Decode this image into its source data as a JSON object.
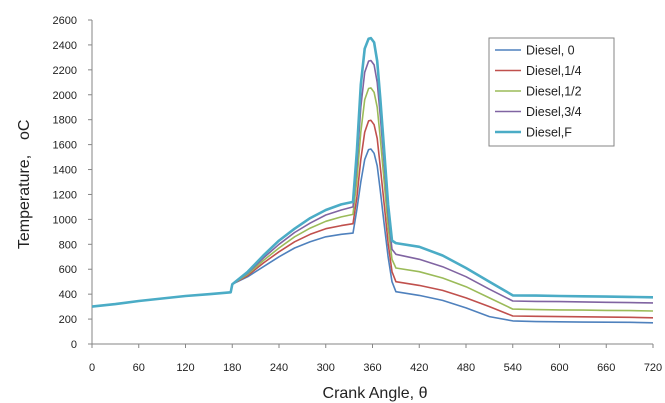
{
  "chart_data": {
    "type": "line",
    "xlabel": "Crank Angle, θ",
    "ylabel": "Temperature,",
    "ylabel_unit": "oC",
    "xlim": [
      0,
      720
    ],
    "ylim": [
      0,
      2600
    ],
    "xticks": [
      0,
      60,
      120,
      180,
      240,
      300,
      360,
      420,
      480,
      540,
      600,
      660,
      720
    ],
    "yticks": [
      0,
      200,
      400,
      600,
      800,
      1000,
      1200,
      1400,
      1600,
      1800,
      2000,
      2200,
      2400,
      2600
    ],
    "grid": false,
    "legend_position": "top-right",
    "series": [
      {
        "name": "Diesel, 0",
        "color": "#4f81bd",
        "x": [
          0,
          30,
          60,
          90,
          120,
          150,
          178,
          180,
          200,
          220,
          240,
          260,
          280,
          300,
          320,
          335,
          340,
          345,
          350,
          355,
          358,
          362,
          366,
          370,
          375,
          380,
          385,
          390,
          420,
          450,
          480,
          510,
          540,
          570,
          600,
          630,
          660,
          690,
          720
        ],
        "y": [
          300,
          320,
          345,
          365,
          385,
          400,
          415,
          480,
          540,
          620,
          700,
          770,
          820,
          860,
          880,
          890,
          1080,
          1300,
          1480,
          1560,
          1565,
          1530,
          1430,
          1230,
          960,
          700,
          500,
          420,
          390,
          350,
          290,
          220,
          185,
          180,
          178,
          176,
          175,
          174,
          170
        ]
      },
      {
        "name": "Diesel,1/4",
        "color": "#c0504d",
        "x": [
          0,
          30,
          60,
          90,
          120,
          150,
          178,
          180,
          200,
          220,
          240,
          260,
          280,
          300,
          320,
          335,
          340,
          345,
          350,
          355,
          358,
          362,
          366,
          370,
          375,
          380,
          385,
          390,
          420,
          450,
          480,
          510,
          540,
          570,
          600,
          630,
          660,
          690,
          720
        ],
        "y": [
          300,
          320,
          345,
          365,
          385,
          400,
          415,
          480,
          550,
          650,
          740,
          820,
          880,
          925,
          950,
          965,
          1180,
          1480,
          1700,
          1790,
          1795,
          1760,
          1650,
          1420,
          1120,
          810,
          580,
          500,
          470,
          430,
          370,
          300,
          225,
          222,
          220,
          218,
          216,
          214,
          210
        ]
      },
      {
        "name": "Diesel,1/2",
        "color": "#9bbb59",
        "x": [
          0,
          30,
          60,
          90,
          120,
          150,
          178,
          180,
          200,
          220,
          240,
          260,
          280,
          300,
          320,
          335,
          340,
          345,
          350,
          355,
          358,
          362,
          366,
          370,
          375,
          380,
          385,
          390,
          420,
          450,
          480,
          510,
          540,
          570,
          600,
          630,
          660,
          690,
          720
        ],
        "y": [
          300,
          320,
          345,
          365,
          385,
          400,
          415,
          480,
          560,
          670,
          770,
          860,
          930,
          985,
          1020,
          1040,
          1320,
          1700,
          1960,
          2050,
          2055,
          2020,
          1900,
          1650,
          1300,
          940,
          680,
          610,
          580,
          530,
          460,
          370,
          280,
          276,
          274,
          272,
          270,
          268,
          265
        ]
      },
      {
        "name": "Diesel,3/4",
        "color": "#8064a2",
        "x": [
          0,
          30,
          60,
          90,
          120,
          150,
          178,
          180,
          200,
          220,
          240,
          260,
          280,
          300,
          320,
          335,
          340,
          345,
          350,
          355,
          358,
          362,
          366,
          370,
          375,
          380,
          385,
          390,
          420,
          450,
          480,
          510,
          540,
          570,
          600,
          630,
          660,
          690,
          720
        ],
        "y": [
          300,
          320,
          345,
          365,
          385,
          400,
          415,
          480,
          570,
          690,
          800,
          895,
          970,
          1035,
          1075,
          1100,
          1440,
          1900,
          2180,
          2270,
          2275,
          2240,
          2100,
          1830,
          1440,
          1040,
          760,
          720,
          680,
          620,
          540,
          440,
          345,
          342,
          340,
          338,
          335,
          332,
          330
        ]
      },
      {
        "name": "Diesel,F",
        "color": "#4bacc6",
        "x": [
          0,
          30,
          60,
          90,
          120,
          150,
          178,
          180,
          200,
          220,
          240,
          260,
          280,
          300,
          320,
          335,
          340,
          345,
          350,
          355,
          358,
          362,
          366,
          370,
          375,
          380,
          385,
          390,
          420,
          450,
          480,
          510,
          540,
          570,
          600,
          630,
          660,
          690,
          720
        ],
        "y": [
          300,
          320,
          345,
          365,
          385,
          400,
          415,
          480,
          580,
          710,
          830,
          925,
          1010,
          1075,
          1120,
          1140,
          1550,
          2080,
          2370,
          2450,
          2455,
          2420,
          2270,
          1970,
          1550,
          1120,
          830,
          810,
          780,
          710,
          610,
          500,
          390,
          388,
          385,
          383,
          380,
          378,
          375
        ]
      }
    ]
  }
}
